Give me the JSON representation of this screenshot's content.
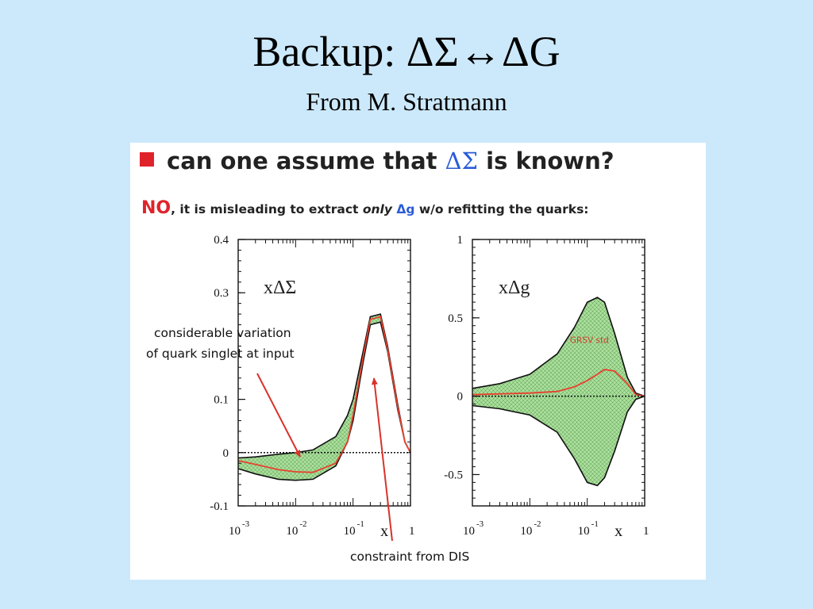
{
  "slide": {
    "title": "Backup: ΔΣ↔ΔG",
    "subtitle": "From M. Stratmann"
  },
  "panel": {
    "headline_pre": "can one assume that ",
    "headline_symbol": "ΔΣ",
    "headline_post": " is known?",
    "no_word": "NO",
    "subline_a": ", it is misleading to extract ",
    "subline_only": "only",
    "subline_dg": "Δg",
    "subline_b": " w/o refitting the quarks:",
    "colors": {
      "bullet": "#e0232b",
      "symbol": "#2a5bd7",
      "band": "#9fd98f",
      "curve": "#e8402e"
    }
  },
  "annotations": {
    "variation_line1": "considerable variation",
    "variation_line2": "of quark singlet at input",
    "constraint": "constraint from DIS"
  },
  "chart_data": [
    {
      "type": "area",
      "label": "xΔΣ",
      "xscale": "log",
      "xlim": [
        0.001,
        1
      ],
      "ylim": [
        -0.1,
        0.4
      ],
      "xlabel": "x",
      "x_ticks": [
        {
          "base": "10",
          "exp": "-3"
        },
        {
          "base": "10",
          "exp": "-2"
        },
        {
          "base": "10",
          "exp": "-1"
        },
        {
          "base": "1",
          "exp": ""
        }
      ],
      "y_ticks": [
        "0.4",
        "0.3",
        "0.1",
        "0",
        "-0.1"
      ],
      "y_tick_values": [
        0.4,
        0.3,
        0.1,
        0,
        -0.1
      ],
      "zero_line": true,
      "series": [
        {
          "x": [
            0.001,
            0.002,
            0.005,
            0.01,
            0.02,
            0.05,
            0.08,
            0.1,
            0.15,
            0.2,
            0.3,
            0.4,
            0.6,
            0.8,
            1.0
          ],
          "upper": [
            -0.01,
            -0.008,
            -0.003,
            0.0,
            0.005,
            0.03,
            0.07,
            0.1,
            0.19,
            0.255,
            0.26,
            0.2,
            0.09,
            0.02,
            0.0
          ],
          "lower": [
            -0.03,
            -0.04,
            -0.05,
            -0.052,
            -0.05,
            -0.025,
            0.02,
            0.06,
            0.17,
            0.24,
            0.245,
            0.19,
            0.08,
            0.02,
            0.0
          ],
          "central": [
            -0.015,
            -0.022,
            -0.032,
            -0.036,
            -0.037,
            -0.02,
            0.02,
            0.07,
            0.18,
            0.25,
            0.255,
            0.195,
            0.085,
            0.02,
            0.0
          ]
        }
      ]
    },
    {
      "type": "area",
      "label": "xΔg",
      "xscale": "log",
      "xlim": [
        0.001,
        1
      ],
      "ylim": [
        -0.7,
        1.0
      ],
      "xlabel": "x",
      "x_ticks": [
        {
          "base": "10",
          "exp": "-3"
        },
        {
          "base": "10",
          "exp": "-2"
        },
        {
          "base": "10",
          "exp": "-1"
        },
        {
          "base": "1",
          "exp": ""
        }
      ],
      "y_ticks": [
        "1",
        "0.5",
        "0",
        "-0.5"
      ],
      "y_tick_values": [
        1.0,
        0.5,
        0.0,
        -0.5
      ],
      "zero_line": true,
      "series": [
        {
          "name": "GRSV std",
          "x": [
            0.001,
            0.003,
            0.01,
            0.03,
            0.06,
            0.1,
            0.15,
            0.2,
            0.3,
            0.5,
            0.7,
            1.0
          ],
          "upper": [
            0.05,
            0.08,
            0.14,
            0.27,
            0.44,
            0.6,
            0.63,
            0.6,
            0.4,
            0.12,
            0.02,
            0.0
          ],
          "lower": [
            -0.06,
            -0.08,
            -0.12,
            -0.23,
            -0.4,
            -0.55,
            -0.57,
            -0.52,
            -0.35,
            -0.1,
            -0.02,
            0.0
          ],
          "central": [
            0.01,
            0.015,
            0.02,
            0.03,
            0.06,
            0.1,
            0.14,
            0.17,
            0.16,
            0.08,
            0.01,
            0.0
          ]
        }
      ]
    }
  ]
}
